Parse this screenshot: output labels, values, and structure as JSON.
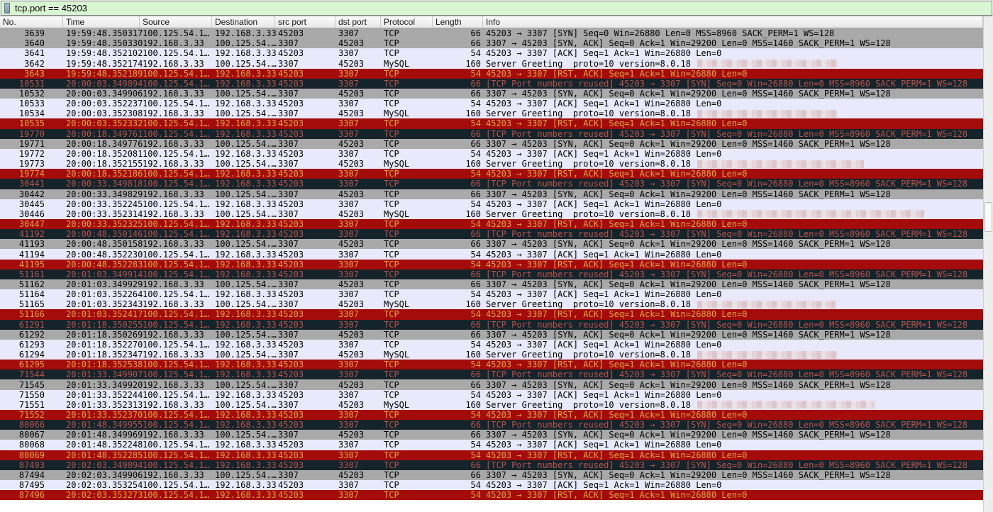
{
  "filter": {
    "value": "tcp.port == 45203"
  },
  "columns": [
    "No.",
    "Time",
    "Source",
    "Destination",
    "src port",
    "dst port",
    "Protocol",
    "Length",
    "Info"
  ],
  "colors": {
    "filter_valid_bg": "#d9f6d2",
    "row_gray_bg": "#a9a9a9",
    "row_gray_fg": "#000000",
    "row_lavender_bg": "#e9e9fb",
    "row_lavender_fg": "#000000",
    "row_rst_bg": "#a40b0b",
    "row_rst_fg": "#e2a440",
    "row_badtcp_bg": "#15242b",
    "row_badtcp_fg": "#b5534c"
  },
  "row_styles": {
    "syn": {
      "bg": "#a9a9a9",
      "fg": "#000000"
    },
    "synack": {
      "bg": "#a9a9a9",
      "fg": "#000000"
    },
    "ack": {
      "bg": "#e9e9fb",
      "fg": "#000000"
    },
    "mysql": {
      "bg": "#e9e9fb",
      "fg": "#000000"
    },
    "rst": {
      "bg": "#a40b0b",
      "fg": "#e2a440"
    },
    "reused": {
      "bg": "#15242b",
      "fg": "#b5534c"
    }
  },
  "type_fields": {
    "syn": {
      "src": "100.125.54.1…",
      "dst": "192.168.3.33",
      "sport": "45203",
      "dport": "3307",
      "proto": "TCP",
      "len": "66"
    },
    "reused": {
      "src": "100.125.54.1…",
      "dst": "192.168.3.33",
      "sport": "45203",
      "dport": "3307",
      "proto": "TCP",
      "len": "66"
    },
    "synack": {
      "src": "192.168.3.33",
      "dst": "100.125.54.…",
      "sport": "3307",
      "dport": "45203",
      "proto": "TCP",
      "len": "66"
    },
    "ack": {
      "src": "100.125.54.1…",
      "dst": "192.168.3.33",
      "sport": "45203",
      "dport": "3307",
      "proto": "TCP",
      "len": "54"
    },
    "mysql": {
      "src": "192.168.3.33",
      "dst": "100.125.54.…",
      "sport": "3307",
      "dport": "45203",
      "proto": "MySQL",
      "len": "160"
    },
    "rst": {
      "src": "100.125.54.1…",
      "dst": "192.168.3.33",
      "sport": "45203",
      "dport": "3307",
      "proto": "TCP",
      "len": "54"
    }
  },
  "info_templates": {
    "syn": "45203 → 3307 [SYN] Seq=0 Win=26880 Len=0 MSS=8960 SACK_PERM=1 WS=128",
    "reused": "[TCP Port numbers reused] 45203 → 3307 [SYN] Seq=0 Win=26880 Len=0 MSS=8960 SACK_PERM=1 WS=128",
    "synack": "3307 → 45203 [SYN, ACK] Seq=0 Ack=1 Win=29200 Len=0 MSS=1460 SACK_PERM=1 WS=128",
    "ack": "45203 → 3307 [ACK] Seq=1 Ack=1 Win=26880 Len=0",
    "mysql": "Server Greeting  proto=10 version=8.0.18",
    "rst": "45203 → 3307 [RST, ACK] Seq=1 Ack=1 Win=26880 Len=0"
  },
  "rows": [
    {
      "no": "3639",
      "time": "19:59:48.350317",
      "type": "syn",
      "redact_w": 0
    },
    {
      "no": "3640",
      "time": "19:59:48.350330",
      "type": "synack",
      "redact_w": 0
    },
    {
      "no": "3641",
      "time": "19:59:48.352102",
      "type": "ack",
      "redact_w": 0
    },
    {
      "no": "3642",
      "time": "19:59:48.352174",
      "type": "mysql",
      "redact_w": 198
    },
    {
      "no": "3643",
      "time": "19:59:48.352189",
      "type": "rst",
      "redact_w": 0
    },
    {
      "no": "10531",
      "time": "20:00:03.349894",
      "type": "reused",
      "redact_w": 0
    },
    {
      "no": "10532",
      "time": "20:00:03.349906",
      "type": "synack",
      "redact_w": 0
    },
    {
      "no": "10533",
      "time": "20:00:03.352237",
      "type": "ack",
      "redact_w": 0
    },
    {
      "no": "10534",
      "time": "20:00:03.352308",
      "type": "mysql",
      "redact_w": 198
    },
    {
      "no": "10535",
      "time": "20:00:03.352332",
      "type": "rst",
      "redact_w": 0
    },
    {
      "no": "19770",
      "time": "20:00:18.349761",
      "type": "reused",
      "redact_w": 0
    },
    {
      "no": "19771",
      "time": "20:00:18.349776",
      "type": "synack",
      "redact_w": 0
    },
    {
      "no": "19772",
      "time": "20:00:18.352081",
      "type": "ack",
      "redact_w": 0
    },
    {
      "no": "19773",
      "time": "20:00:18.352155",
      "type": "mysql",
      "redact_w": 235
    },
    {
      "no": "19774",
      "time": "20:00:18.352186",
      "type": "rst",
      "redact_w": 0
    },
    {
      "no": "30441",
      "time": "20:00:33.349818",
      "type": "reused",
      "redact_w": 0
    },
    {
      "no": "30442",
      "time": "20:00:33.349829",
      "type": "synack",
      "redact_w": 0
    },
    {
      "no": "30445",
      "time": "20:00:33.352245",
      "type": "ack",
      "redact_w": 0
    },
    {
      "no": "30446",
      "time": "20:00:33.352314",
      "type": "mysql",
      "redact_w": 320
    },
    {
      "no": "30447",
      "time": "20:00:33.352325",
      "type": "rst",
      "redact_w": 0
    },
    {
      "no": "41192",
      "time": "20:00:48.350146",
      "type": "reused",
      "redact_w": 0
    },
    {
      "no": "41193",
      "time": "20:00:48.350158",
      "type": "synack",
      "redact_w": 0
    },
    {
      "no": "41194",
      "time": "20:00:48.352230",
      "type": "ack",
      "redact_w": 0
    },
    {
      "no": "41195",
      "time": "20:00:48.352283",
      "type": "rst",
      "redact_w": 0
    },
    {
      "no": "51161",
      "time": "20:01:03.349914",
      "type": "reused",
      "redact_w": 0
    },
    {
      "no": "51162",
      "time": "20:01:03.349929",
      "type": "synack",
      "redact_w": 0
    },
    {
      "no": "51164",
      "time": "20:01:03.352264",
      "type": "ack",
      "redact_w": 0
    },
    {
      "no": "51165",
      "time": "20:01:03.352343",
      "type": "mysql",
      "redact_w": 195
    },
    {
      "no": "51166",
      "time": "20:01:03.352417",
      "type": "rst",
      "redact_w": 0
    },
    {
      "no": "61291",
      "time": "20:01:18.350255",
      "type": "reused",
      "redact_w": 0
    },
    {
      "no": "61292",
      "time": "20:01:18.350269",
      "type": "synack",
      "redact_w": 0
    },
    {
      "no": "61293",
      "time": "20:01:18.352270",
      "type": "ack",
      "redact_w": 0
    },
    {
      "no": "61294",
      "time": "20:01:18.352347",
      "type": "mysql",
      "redact_w": 198
    },
    {
      "no": "61295",
      "time": "20:01:18.352538",
      "type": "rst",
      "redact_w": 0
    },
    {
      "no": "71544",
      "time": "20:01:33.349907",
      "type": "reused",
      "redact_w": 0
    },
    {
      "no": "71545",
      "time": "20:01:33.349920",
      "type": "synack",
      "redact_w": 0
    },
    {
      "no": "71550",
      "time": "20:01:33.352244",
      "type": "ack",
      "redact_w": 0
    },
    {
      "no": "71551",
      "time": "20:01:33.352313",
      "type": "mysql",
      "redact_w": 250
    },
    {
      "no": "71552",
      "time": "20:01:33.352370",
      "type": "rst",
      "redact_w": 0
    },
    {
      "no": "80066",
      "time": "20:01:48.349955",
      "type": "reused",
      "redact_w": 0
    },
    {
      "no": "80067",
      "time": "20:01:48.349969",
      "type": "synack",
      "redact_w": 0
    },
    {
      "no": "80068",
      "time": "20:01:48.352248",
      "type": "ack",
      "redact_w": 0
    },
    {
      "no": "80069",
      "time": "20:01:48.352285",
      "type": "rst",
      "redact_w": 0
    },
    {
      "no": "87493",
      "time": "20:02:03.349894",
      "type": "reused",
      "redact_w": 0
    },
    {
      "no": "87494",
      "time": "20:02:03.349906",
      "type": "synack",
      "redact_w": 0
    },
    {
      "no": "87495",
      "time": "20:02:03.353254",
      "type": "ack",
      "redact_w": 0
    },
    {
      "no": "87496",
      "time": "20:02:03.353273",
      "type": "rst",
      "redact_w": 0
    }
  ]
}
